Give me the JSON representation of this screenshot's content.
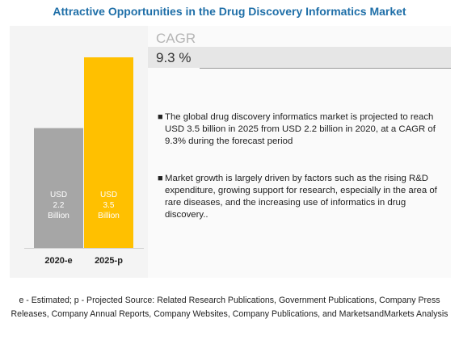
{
  "title": "Attractive Opportunities in the Drug Discovery Informatics Market",
  "cagr": {
    "label": "CAGR",
    "value": "9.3 %"
  },
  "bullets": [
    "The global drug discovery informatics market is projected to reach USD 3.5 billion in 2025 from USD 2.2 billion in 2020, at a CAGR of 9.3% during the forecast period",
    "Market growth is largely driven by factors such as the rising R&D expenditure, growing support for research, especially in the area of rare diseases, and the increasing use of informatics in drug discovery.."
  ],
  "source": "e - Estimated; p - Projected  Source: Related Research Publications, Government Publications, Company Press Releases, Company Annual Reports, Company Websites, Company Publications, and MarketsandMarkets Analysis",
  "chart_data": {
    "type": "bar",
    "categories": [
      "2020-e",
      "2025-p"
    ],
    "values": [
      2.2,
      3.5
    ],
    "bar_labels": [
      [
        "USD",
        "2.2",
        "Billion"
      ],
      [
        "USD",
        "3.5",
        "Billion"
      ]
    ],
    "colors": [
      "#a6a6a6",
      "#ffc000"
    ],
    "title": "",
    "xlabel": "",
    "ylabel": "",
    "ylim": [
      0,
      3.5
    ],
    "grid": false
  }
}
